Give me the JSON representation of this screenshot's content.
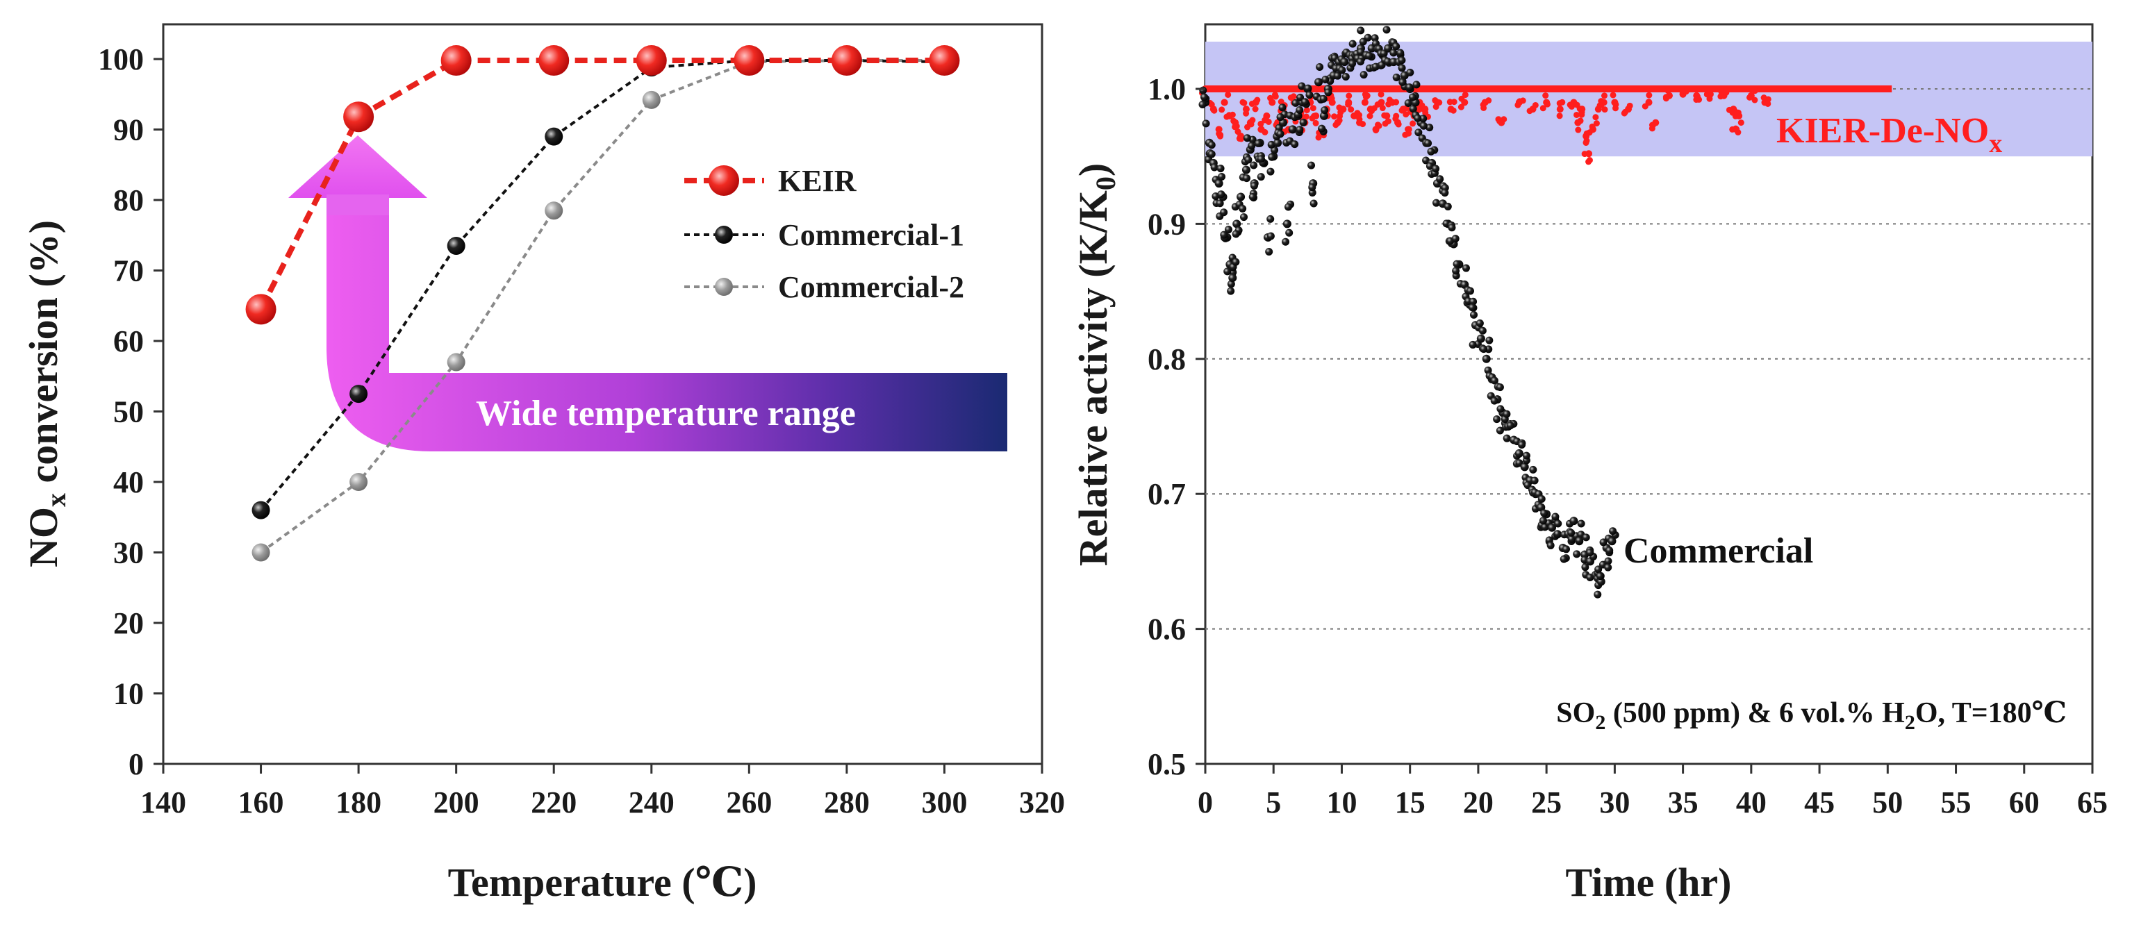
{
  "chart_data": [
    {
      "type": "line",
      "xlabel": "Temperature (℃)",
      "ylabel": "NOx conversion (%)",
      "ylabel_base": "NO",
      "ylabel_sub": "x",
      "ylabel_rest": " conversion (%)",
      "xlim": [
        140,
        320
      ],
      "ylim": [
        0,
        100
      ],
      "xticks": [
        140,
        160,
        180,
        200,
        220,
        240,
        260,
        280,
        300,
        320
      ],
      "yticks": [
        0,
        10,
        20,
        30,
        40,
        50,
        60,
        70,
        80,
        90,
        100
      ],
      "x": [
        160,
        180,
        200,
        220,
        240,
        260,
        280,
        300
      ],
      "series": [
        {
          "name": "KEIR",
          "color": "#e8221c",
          "values": [
            64.5,
            91.8,
            99.8,
            99.8,
            99.8,
            99.8,
            99.8,
            99.8
          ]
        },
        {
          "name": "Commercial-1",
          "color": "#111111",
          "values": [
            36,
            52.5,
            73.5,
            89,
            98.8,
            99.8,
            99.8,
            99.6
          ]
        },
        {
          "name": "Commercial-2",
          "color": "#8a8a8a",
          "values": [
            30,
            40,
            57,
            78.5,
            94.2,
            99.6,
            99.8,
            99.8
          ]
        }
      ],
      "legend_position": "right",
      "annotation": "Wide temperature range"
    },
    {
      "type": "scatter",
      "xlabel": "Time (hr)",
      "ylabel": "Relative activity (K/K0)",
      "ylabel_base": "Relative activity (K/K",
      "ylabel_sub": "0",
      "ylabel_rest": ")",
      "xlim": [
        0,
        65
      ],
      "ylim": [
        0.5,
        1.05
      ],
      "xticks": [
        0,
        5,
        10,
        15,
        20,
        25,
        30,
        35,
        40,
        45,
        50,
        55,
        60,
        65
      ],
      "yticks": [
        "0.5",
        "0.6",
        "0.7",
        "0.8",
        "0.9",
        "1.0"
      ],
      "gridlines_y": [
        0.6,
        0.7,
        0.8,
        0.9,
        1.0
      ],
      "band": {
        "from": 0.95,
        "to": 1.035,
        "color": "#c5c5f5"
      },
      "series": [
        {
          "name": "KIER-De-NOx",
          "color": "#ff1e1e",
          "points": [
            [
              0,
              1.0
            ],
            [
              0.6,
              0.985
            ],
            [
              1.0,
              0.97
            ],
            [
              1.4,
              0.99
            ],
            [
              1.8,
              0.98
            ],
            [
              2.2,
              0.975
            ],
            [
              2.6,
              0.965
            ],
            [
              3.0,
              0.985
            ],
            [
              3.3,
              0.975
            ],
            [
              3.7,
              0.99
            ],
            [
              4.1,
              0.97
            ],
            [
              4.5,
              0.98
            ],
            [
              4.9,
              0.99
            ],
            [
              5.3,
              0.975
            ],
            [
              5.7,
              0.985
            ],
            [
              6.1,
              0.97
            ],
            [
              6.5,
              0.99
            ],
            [
              6.9,
              0.98
            ],
            [
              7.3,
              0.975
            ],
            [
              7.7,
              0.99
            ],
            [
              8.1,
              0.98
            ],
            [
              8.5,
              0.97
            ],
            [
              8.9,
              0.985
            ],
            [
              9.3,
              0.99
            ],
            [
              9.7,
              0.975
            ],
            [
              10.1,
              0.985
            ],
            [
              10.5,
              0.99
            ],
            [
              10.9,
              0.98
            ],
            [
              11.3,
              0.975
            ],
            [
              11.7,
              0.99
            ],
            [
              12.1,
              0.985
            ],
            [
              12.5,
              0.97
            ],
            [
              12.9,
              0.99
            ],
            [
              13.3,
              0.98
            ],
            [
              13.7,
              0.99
            ],
            [
              14.1,
              0.975
            ],
            [
              14.5,
              0.985
            ],
            [
              14.9,
              0.97
            ],
            [
              15.3,
              0.98
            ],
            [
              15.7,
              0.99
            ],
            [
              16.1,
              0.985
            ],
            [
              17,
              0.99
            ],
            [
              18,
              0.985
            ],
            [
              19,
              0.99
            ],
            [
              20.5,
              0.99
            ],
            [
              21.7,
              0.975
            ],
            [
              23,
              0.99
            ],
            [
              24,
              0.985
            ],
            [
              25,
              0.99
            ],
            [
              26,
              0.985
            ],
            [
              27,
              0.99
            ],
            [
              27.3,
              0.975
            ],
            [
              27.6,
              0.985
            ],
            [
              27.9,
              0.965
            ],
            [
              28.1,
              0.952
            ],
            [
              28.4,
              0.97
            ],
            [
              28.8,
              0.985
            ],
            [
              29.2,
              0.99
            ],
            [
              30,
              0.99
            ],
            [
              31,
              0.985
            ],
            [
              32.5,
              0.99
            ],
            [
              33,
              0.975
            ],
            [
              34,
              0.995
            ],
            [
              35,
              0.996
            ],
            [
              36,
              0.995
            ],
            [
              37,
              0.996
            ],
            [
              38,
              0.995
            ],
            [
              38.7,
              0.985
            ],
            [
              38.9,
              0.97
            ],
            [
              39.1,
              0.98
            ],
            [
              40,
              0.995
            ],
            [
              41,
              0.99
            ]
          ]
        },
        {
          "name": "Commercial",
          "color": "#111111",
          "points": [
            [
              0,
              0.99
            ],
            [
              0.3,
              0.96
            ],
            [
              0.6,
              0.945
            ],
            [
              1.0,
              0.93
            ],
            [
              1.3,
              0.92
            ],
            [
              1.6,
              0.89
            ],
            [
              1.8,
              0.87
            ],
            [
              2.0,
              0.86
            ],
            [
              2.3,
              0.9
            ],
            [
              2.6,
              0.92
            ],
            [
              3.0,
              0.94
            ],
            [
              3.3,
              0.955
            ],
            [
              3.6,
              0.93
            ],
            [
              4.0,
              0.96
            ],
            [
              4.3,
              0.945
            ],
            [
              4.6,
              0.89
            ],
            [
              5.0,
              0.95
            ],
            [
              5.3,
              0.96
            ],
            [
              5.7,
              0.975
            ],
            [
              6.0,
              0.9
            ],
            [
              6.4,
              0.97
            ],
            [
              6.8,
              0.98
            ],
            [
              7.1,
              0.99
            ],
            [
              7.5,
              1.0
            ],
            [
              7.9,
              0.93
            ],
            [
              8.3,
              1.005
            ],
            [
              8.7,
              0.98
            ],
            [
              9.0,
              1.0
            ],
            [
              9.4,
              1.01
            ],
            [
              9.8,
              1.02
            ],
            [
              10.2,
              1.02
            ],
            [
              10.6,
              1.025
            ],
            [
              11.0,
              1.025
            ],
            [
              11.4,
              1.03
            ],
            [
              11.8,
              1.025
            ],
            [
              12.2,
              1.03
            ],
            [
              12.6,
              1.03
            ],
            [
              13.0,
              1.025
            ],
            [
              13.4,
              1.03
            ],
            [
              13.8,
              1.02
            ],
            [
              14.2,
              1.02
            ],
            [
              14.6,
              1.01
            ],
            [
              15.0,
              1.0
            ],
            [
              15.4,
              0.99
            ],
            [
              15.8,
              0.975
            ],
            [
              16.2,
              0.96
            ],
            [
              16.6,
              0.945
            ],
            [
              17.0,
              0.93
            ],
            [
              17.4,
              0.915
            ],
            [
              17.8,
              0.9
            ],
            [
              18.2,
              0.885
            ],
            [
              18.6,
              0.87
            ],
            [
              19.0,
              0.855
            ],
            [
              19.4,
              0.84
            ],
            [
              19.8,
              0.825
            ],
            [
              20.2,
              0.815
            ],
            [
              20.6,
              0.8
            ],
            [
              21.0,
              0.785
            ],
            [
              21.4,
              0.77
            ],
            [
              21.8,
              0.76
            ],
            [
              22.2,
              0.75
            ],
            [
              22.6,
              0.74
            ],
            [
              23.0,
              0.73
            ],
            [
              23.4,
              0.72
            ],
            [
              23.8,
              0.71
            ],
            [
              24.2,
              0.7
            ],
            [
              24.6,
              0.69
            ],
            [
              25.0,
              0.685
            ],
            [
              25.4,
              0.675
            ],
            [
              25.8,
              0.67
            ],
            [
              26.2,
              0.66
            ],
            [
              26.6,
              0.67
            ],
            [
              27.0,
              0.68
            ],
            [
              27.4,
              0.665
            ],
            [
              27.8,
              0.655
            ],
            [
              28.2,
              0.65
            ],
            [
              28.6,
              0.64
            ],
            [
              29.0,
              0.635
            ],
            [
              29.4,
              0.66
            ],
            [
              29.8,
              0.665
            ]
          ]
        }
      ],
      "labels": {
        "red": "KIER-De-NO",
        "red_sub": "x",
        "black": "Commercial"
      },
      "condition": {
        "a": "SO",
        "a_sub": "2",
        "b": " (500 ppm) & 6 vol.%  H",
        "b_sub": "2",
        "c": "O, T=180℃"
      }
    }
  ]
}
